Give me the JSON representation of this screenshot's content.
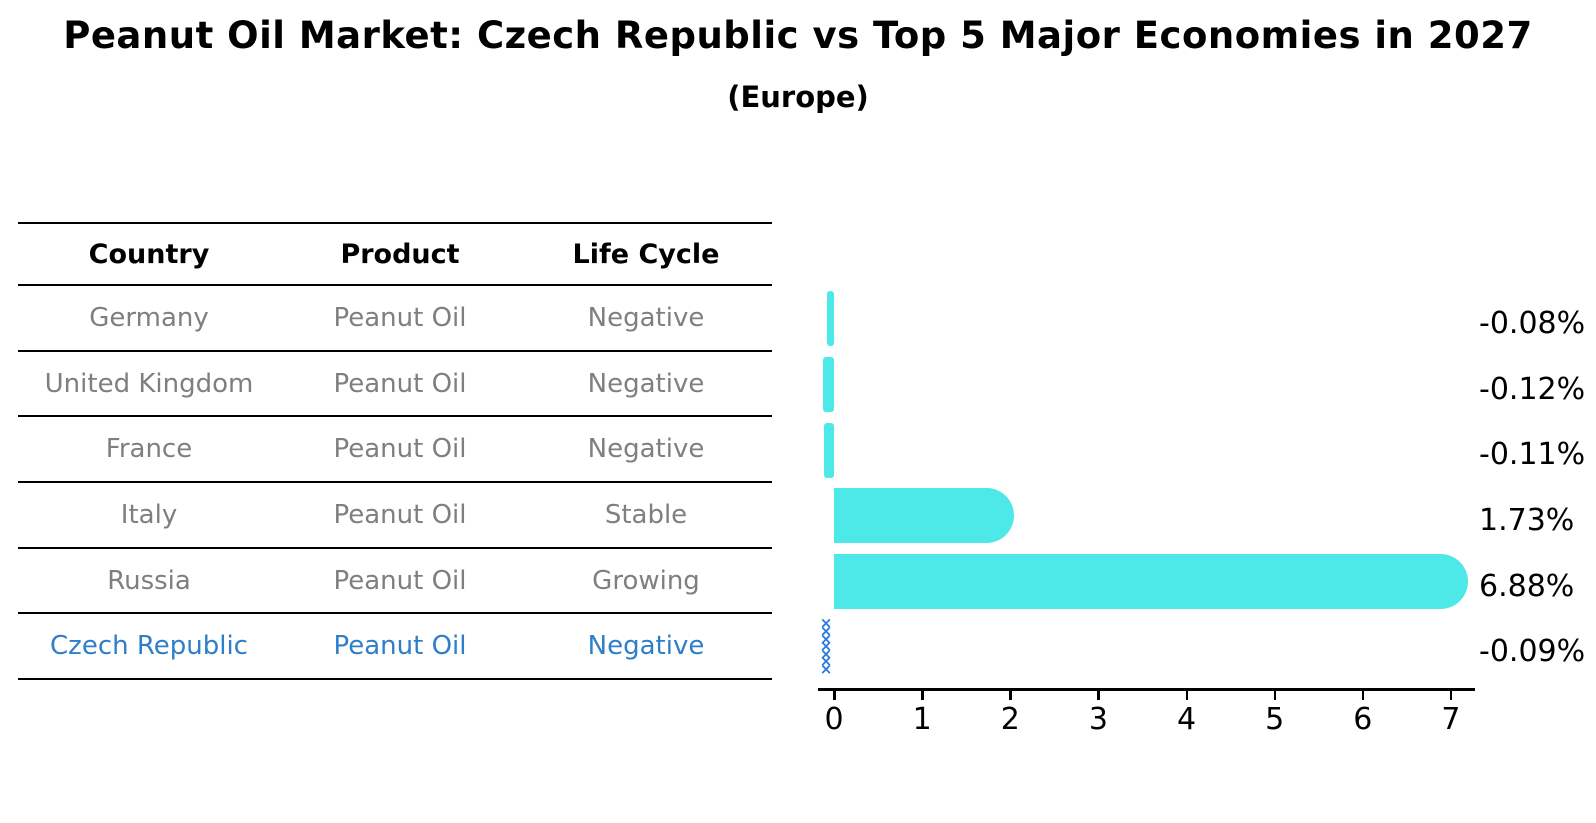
{
  "title": "Peanut Oil Market: Czech Republic vs Top 5 Major Economies in 2027",
  "subtitle": "(Europe)",
  "table": {
    "headers": [
      "Country",
      "Product",
      "Life Cycle"
    ],
    "rows": [
      {
        "country": "Germany",
        "product": "Peanut Oil",
        "life_cycle": "Negative"
      },
      {
        "country": "United Kingdom",
        "product": "Peanut Oil",
        "life_cycle": "Negative"
      },
      {
        "country": "France",
        "product": "Peanut Oil",
        "life_cycle": "Negative"
      },
      {
        "country": "Italy",
        "product": "Peanut Oil",
        "life_cycle": "Stable"
      },
      {
        "country": "Russia",
        "product": "Peanut Oil",
        "life_cycle": "Growing"
      },
      {
        "country": "Czech Republic",
        "product": "Peanut Oil",
        "life_cycle": "Negative"
      }
    ],
    "highlight_row_index": 5
  },
  "chart_data": {
    "type": "bar",
    "orientation": "horizontal",
    "categories": [
      "Germany",
      "United Kingdom",
      "France",
      "Italy",
      "Russia",
      "Czech Republic"
    ],
    "values": [
      -0.08,
      -0.12,
      -0.11,
      1.73,
      6.88,
      -0.09
    ],
    "value_labels": [
      "-0.08%",
      "-0.12%",
      "-0.11%",
      "1.73%",
      "6.88%",
      "-0.09%"
    ],
    "x_ticks": [
      "0",
      "1",
      "2",
      "3",
      "4",
      "5",
      "6",
      "7"
    ],
    "xlim": [
      0,
      7
    ],
    "grid": false,
    "legend": false,
    "bar_color": "#4DE8E8",
    "highlight_index": 5,
    "highlight_marker": "x-cross-column",
    "marker_color": "#2778DF",
    "marker_glyph": "×"
  },
  "colors": {
    "background": "#ffffff",
    "header_text": "#000000",
    "row_text": "#7f7f7f",
    "highlight_text": "#2E7EC9",
    "axis": "#000000",
    "value_label_text": "#000000"
  }
}
